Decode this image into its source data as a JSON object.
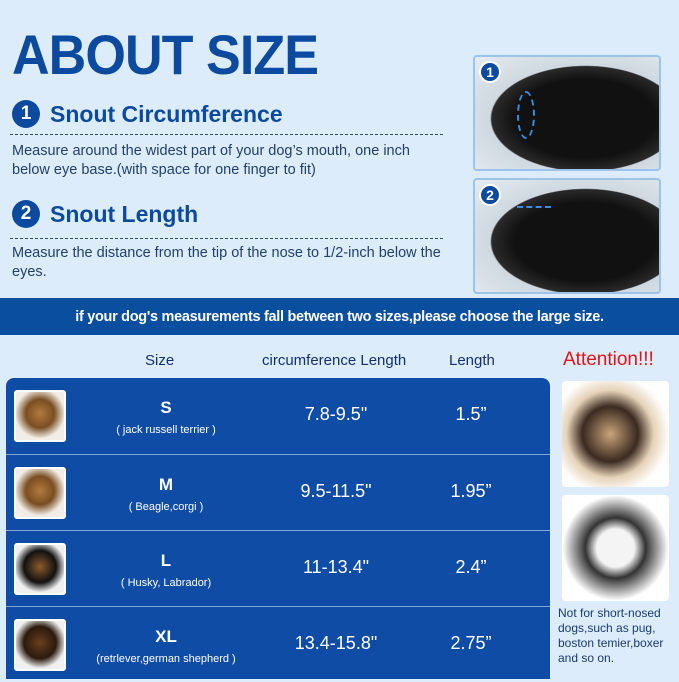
{
  "title": "ABOUT SIZE",
  "steps": [
    {
      "num": "1",
      "heading": "Snout Circumference",
      "desc": "Measure around the widest part of your dog’s mouth, one inch below eye base.(with space for one finger to fit)"
    },
    {
      "num": "2",
      "heading": "Snout Length",
      "desc": "Measure the distance from the tip of the nose to 1/2-inch below the eyes."
    }
  ],
  "banner": "if your dog's measurements fall between two sizes,please choose the large size.",
  "table": {
    "headers": [
      "Size",
      "circumference Length",
      "Length"
    ],
    "rows": [
      {
        "size": "S",
        "breed": "( jack russell terrier )",
        "circumference": "7.8-9.5\"",
        "length": "1.5”"
      },
      {
        "size": "M",
        "breed": "( Beagle,corgi )",
        "circumference": "9.5-11.5\"",
        "length": "1.95”"
      },
      {
        "size": "L",
        "breed": "( Husky, Labrador)",
        "circumference": "11-13.4\"",
        "length": "2.4”"
      },
      {
        "size": "XL",
        "breed": "(retrlever,german shepherd )",
        "circumference": "13.4-15.8\"",
        "length": "2.75”"
      }
    ]
  },
  "attention": {
    "label": "Attention!!!",
    "note": "Not for short-nosed dogs,such as pug, boston temier,boxer and so on."
  }
}
